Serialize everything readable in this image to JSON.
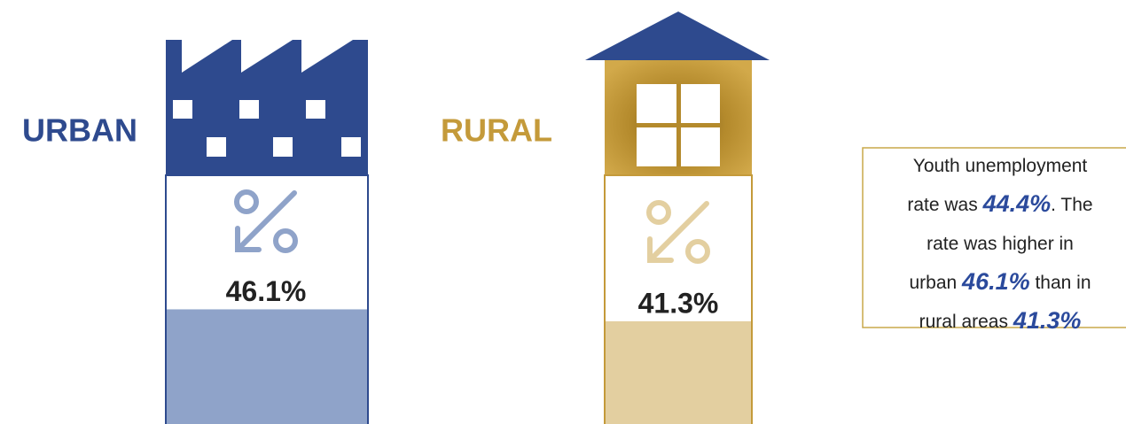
{
  "chart_data": {
    "type": "bar",
    "categories": [
      "URBAN",
      "RURAL"
    ],
    "values": [
      46.1,
      41.3
    ],
    "value_labels": [
      "46.1%",
      "41.3%"
    ],
    "colors": [
      "#8fa3c9",
      "#e3cfa0"
    ],
    "label_colors": [
      "#2e4a8e",
      "#c49a3a"
    ],
    "ylim": [
      0,
      100
    ],
    "annotation": [
      [
        "Youth unemployment"
      ],
      [
        "rate was ",
        "44.4%",
        ". The"
      ],
      [
        "rate was higher in"
      ],
      [
        "urban ",
        "46.1%",
        " than in"
      ],
      [
        "rural areas ",
        "41.3%"
      ]
    ]
  }
}
